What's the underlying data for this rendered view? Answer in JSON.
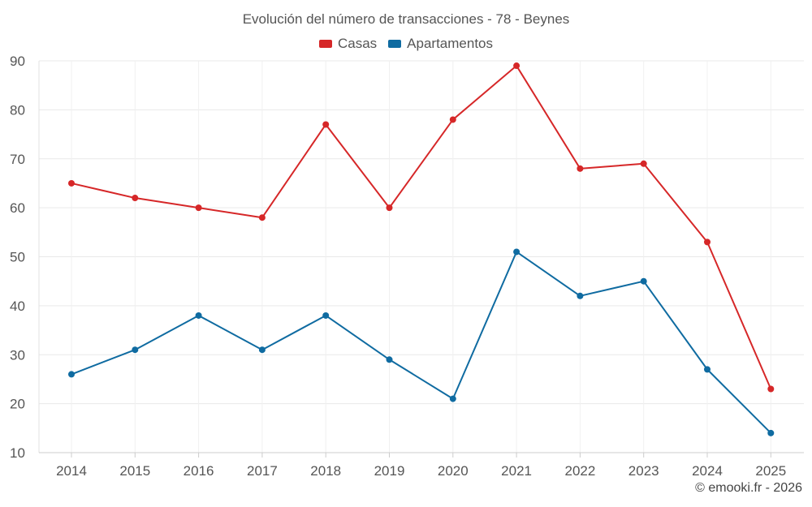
{
  "chart_data": {
    "type": "line",
    "title": "Evolución del número de transacciones - 78 - Beynes",
    "categories": [
      "2014",
      "2015",
      "2016",
      "2017",
      "2018",
      "2019",
      "2020",
      "2021",
      "2022",
      "2023",
      "2024",
      "2025"
    ],
    "series": [
      {
        "name": "Casas",
        "color": "#d62728",
        "values": [
          65,
          62,
          60,
          58,
          77,
          60,
          78,
          89,
          68,
          69,
          53,
          23
        ]
      },
      {
        "name": "Apartamentos",
        "color": "#0f6ba1",
        "values": [
          26,
          31,
          38,
          31,
          38,
          29,
          21,
          51,
          42,
          45,
          27,
          14
        ]
      }
    ],
    "ylim": [
      10,
      90
    ],
    "yticks": [
      10,
      20,
      30,
      40,
      50,
      60,
      70,
      80,
      90
    ],
    "xlabel": "",
    "ylabel": "",
    "grid": true,
    "legend_position": "top-center"
  },
  "credit": "© emooki.fr - 2026"
}
